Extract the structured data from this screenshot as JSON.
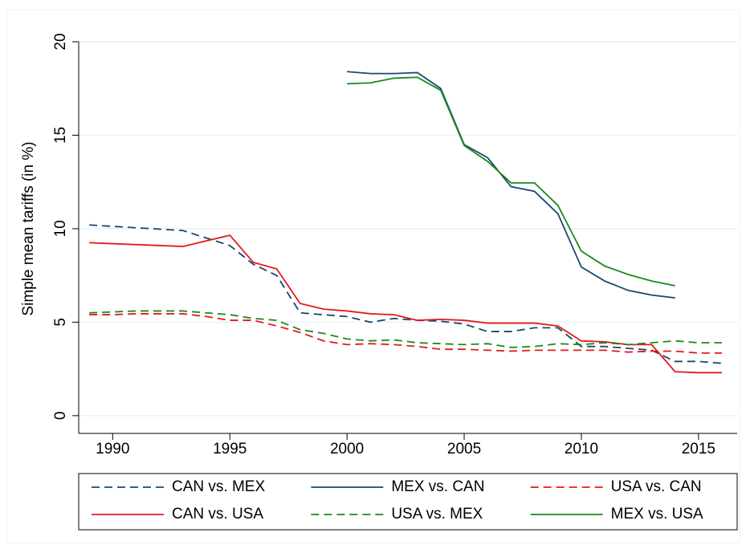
{
  "chart_data": {
    "type": "line",
    "y_label": "Simple mean tariffs (in %)",
    "xlim": [
      1988.55,
      2016.65
    ],
    "ylim": [
      -0.95,
      20
    ],
    "xticks": [
      1990,
      1995,
      2000,
      2005,
      2010,
      2015
    ],
    "yticks": [
      0,
      5,
      10,
      15,
      20
    ],
    "grid": true,
    "legend": "bottom",
    "series": [
      {
        "name": "CAN vs. MEX",
        "color": "#1a476f",
        "dash": true,
        "x": [
          1989,
          1993,
          1995,
          1996,
          1997,
          1998,
          1999,
          2000,
          2001,
          2002,
          2003,
          2004,
          2005,
          2006,
          2007,
          2008,
          2009,
          2010,
          2011,
          2012,
          2013,
          2014,
          2015,
          2016
        ],
        "values": [
          10.2,
          9.9,
          9.1,
          8.1,
          7.5,
          5.5,
          5.4,
          5.3,
          5.0,
          5.2,
          5.1,
          5.05,
          4.9,
          4.5,
          4.5,
          4.7,
          4.7,
          3.7,
          3.7,
          3.6,
          3.5,
          2.9,
          2.9,
          2.8
        ]
      },
      {
        "name": "MEX vs. CAN",
        "color": "#1a476f",
        "dash": false,
        "x": [
          2000,
          2001,
          2002,
          2003,
          2004,
          2005,
          2006,
          2007,
          2008,
          2009,
          2010,
          2011,
          2012,
          2013,
          2014
        ],
        "values": [
          18.4,
          18.3,
          18.3,
          18.35,
          17.5,
          14.5,
          13.8,
          12.25,
          12.0,
          10.8,
          7.95,
          7.2,
          6.7,
          6.45,
          6.3
        ]
      },
      {
        "name": "USA vs. CAN",
        "color": "#e41a1c",
        "dash": true,
        "x": [
          1989,
          1990,
          1991,
          1992,
          1993,
          1994,
          1995,
          1996,
          1997,
          1998,
          1999,
          2000,
          2001,
          2002,
          2003,
          2004,
          2005,
          2006,
          2007,
          2008,
          2009,
          2010,
          2011,
          2012,
          2013,
          2014,
          2015,
          2016
        ],
        "values": [
          5.4,
          5.4,
          5.45,
          5.45,
          5.45,
          5.3,
          5.1,
          5.1,
          4.8,
          4.45,
          4.0,
          3.8,
          3.85,
          3.8,
          3.7,
          3.55,
          3.55,
          3.5,
          3.45,
          3.5,
          3.5,
          3.5,
          3.5,
          3.4,
          3.45,
          3.45,
          3.35,
          3.35
        ]
      },
      {
        "name": "CAN vs. USA",
        "color": "#e41a1c",
        "dash": false,
        "x": [
          1989,
          1993,
          1995,
          1996,
          1997,
          1998,
          1999,
          2000,
          2001,
          2002,
          2003,
          2004,
          2005,
          2006,
          2007,
          2008,
          2009,
          2010,
          2011,
          2012,
          2013,
          2014,
          2015,
          2016
        ],
        "values": [
          9.25,
          9.05,
          9.65,
          8.2,
          7.85,
          6.0,
          5.7,
          5.6,
          5.45,
          5.4,
          5.1,
          5.15,
          5.1,
          4.95,
          4.95,
          4.95,
          4.8,
          4.0,
          3.95,
          3.8,
          3.8,
          2.35,
          2.3,
          2.3
        ]
      },
      {
        "name": "USA vs. MEX",
        "color": "#1a8a1a",
        "dash": true,
        "x": [
          1989,
          1990,
          1991,
          1992,
          1993,
          1994,
          1995,
          1996,
          1997,
          1998,
          1999,
          2000,
          2001,
          2002,
          2003,
          2004,
          2005,
          2006,
          2007,
          2008,
          2009,
          2010,
          2011,
          2012,
          2013,
          2014,
          2015,
          2016
        ],
        "values": [
          5.5,
          5.55,
          5.6,
          5.6,
          5.6,
          5.5,
          5.4,
          5.2,
          5.1,
          4.6,
          4.4,
          4.1,
          4.0,
          4.05,
          3.9,
          3.85,
          3.8,
          3.85,
          3.65,
          3.7,
          3.85,
          3.8,
          3.9,
          3.8,
          3.9,
          4.0,
          3.9,
          3.9
        ]
      },
      {
        "name": "MEX vs. USA",
        "color": "#1a8a1a",
        "dash": false,
        "x": [
          2000,
          2001,
          2002,
          2003,
          2004,
          2005,
          2006,
          2007,
          2008,
          2009,
          2010,
          2011,
          2012,
          2013,
          2014
        ],
        "values": [
          17.75,
          17.8,
          18.05,
          18.1,
          17.4,
          14.45,
          13.6,
          12.45,
          12.45,
          11.25,
          8.8,
          8.0,
          7.55,
          7.2,
          6.95
        ]
      }
    ]
  }
}
